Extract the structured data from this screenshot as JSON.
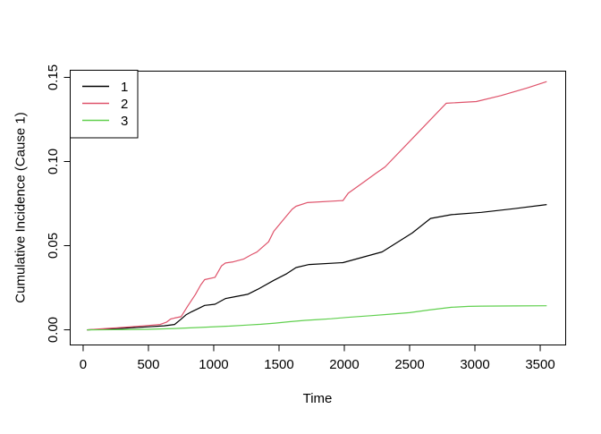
{
  "chart_data": {
    "type": "line",
    "title": "",
    "xlabel": "Time",
    "ylabel": "Cumulative Incidence (Cause 1)",
    "xlim": [
      -99,
      3695
    ],
    "ylim": [
      -0.009,
      0.1537
    ],
    "grid": false,
    "x_ticks": {
      "values": [
        0,
        500,
        1000,
        1500,
        2000,
        2500,
        3000,
        3500
      ],
      "labels": [
        "0",
        "500",
        "1000",
        "1500",
        "2000",
        "2500",
        "3000",
        "3500"
      ]
    },
    "y_ticks": {
      "values": [
        0,
        0.05,
        0.1,
        0.15
      ],
      "labels": [
        "0.00",
        "0.05",
        "0.10",
        "0.15"
      ]
    },
    "legend": {
      "position": "topleft",
      "entries": [
        {
          "label": "1",
          "color": "#000000"
        },
        {
          "label": "2",
          "color": "#DF536B"
        },
        {
          "label": "3",
          "color": "#61D04F"
        }
      ]
    },
    "series": [
      {
        "name": "1",
        "color": "#000000",
        "points": [
          [
            30,
            0
          ],
          [
            150,
            0.0004
          ],
          [
            300,
            0.0009
          ],
          [
            500,
            0.0018
          ],
          [
            620,
            0.0024
          ],
          [
            700,
            0.0032
          ],
          [
            745,
            0.006
          ],
          [
            790,
            0.009
          ],
          [
            830,
            0.0107
          ],
          [
            880,
            0.0126
          ],
          [
            930,
            0.0145
          ],
          [
            1010,
            0.0152
          ],
          [
            1090,
            0.0186
          ],
          [
            1130,
            0.0192
          ],
          [
            1260,
            0.0211
          ],
          [
            1340,
            0.0242
          ],
          [
            1460,
            0.0294
          ],
          [
            1560,
            0.0334
          ],
          [
            1630,
            0.037
          ],
          [
            1730,
            0.0388
          ],
          [
            1990,
            0.0399
          ],
          [
            2290,
            0.0463
          ],
          [
            2520,
            0.0575
          ],
          [
            2660,
            0.0662
          ],
          [
            2820,
            0.0684
          ],
          [
            3050,
            0.0698
          ],
          [
            3300,
            0.072
          ],
          [
            3550,
            0.0744
          ]
        ]
      },
      {
        "name": "2",
        "color": "#DF536B",
        "points": [
          [
            30,
            0
          ],
          [
            150,
            0.0006
          ],
          [
            260,
            0.0012
          ],
          [
            400,
            0.002
          ],
          [
            500,
            0.0026
          ],
          [
            590,
            0.0032
          ],
          [
            640,
            0.0046
          ],
          [
            670,
            0.0064
          ],
          [
            700,
            0.007
          ],
          [
            750,
            0.0078
          ],
          [
            800,
            0.014
          ],
          [
            860,
            0.021
          ],
          [
            900,
            0.0266
          ],
          [
            930,
            0.0298
          ],
          [
            1010,
            0.0312
          ],
          [
            1060,
            0.038
          ],
          [
            1090,
            0.0397
          ],
          [
            1150,
            0.0404
          ],
          [
            1230,
            0.0421
          ],
          [
            1290,
            0.0447
          ],
          [
            1330,
            0.0462
          ],
          [
            1420,
            0.0523
          ],
          [
            1460,
            0.0585
          ],
          [
            1540,
            0.066
          ],
          [
            1600,
            0.0716
          ],
          [
            1630,
            0.0734
          ],
          [
            1716,
            0.0756
          ],
          [
            1990,
            0.0768
          ],
          [
            2030,
            0.0812
          ],
          [
            2150,
            0.0878
          ],
          [
            2243,
            0.0931
          ],
          [
            2312,
            0.0968
          ],
          [
            2550,
            0.116
          ],
          [
            2780,
            0.1346
          ],
          [
            3010,
            0.1356
          ],
          [
            3200,
            0.1392
          ],
          [
            3400,
            0.1437
          ],
          [
            3550,
            0.1475
          ]
        ]
      },
      {
        "name": "3",
        "color": "#61D04F",
        "points": [
          [
            30,
            0
          ],
          [
            300,
            0.0001
          ],
          [
            500,
            0.0003
          ],
          [
            700,
            0.0008
          ],
          [
            900,
            0.0014
          ],
          [
            1130,
            0.0022
          ],
          [
            1250,
            0.0028
          ],
          [
            1360,
            0.0033
          ],
          [
            1470,
            0.004
          ],
          [
            1580,
            0.0048
          ],
          [
            1700,
            0.0056
          ],
          [
            1800,
            0.0061
          ],
          [
            1900,
            0.0066
          ],
          [
            2020,
            0.0074
          ],
          [
            2200,
            0.0084
          ],
          [
            2350,
            0.0093
          ],
          [
            2500,
            0.0102
          ],
          [
            2650,
            0.0118
          ],
          [
            2820,
            0.0134
          ],
          [
            2950,
            0.0139
          ],
          [
            3050,
            0.0141
          ],
          [
            3300,
            0.0142
          ],
          [
            3550,
            0.0143
          ]
        ]
      }
    ]
  },
  "colors": {
    "background": "#ffffff",
    "foreground": "#000000"
  }
}
